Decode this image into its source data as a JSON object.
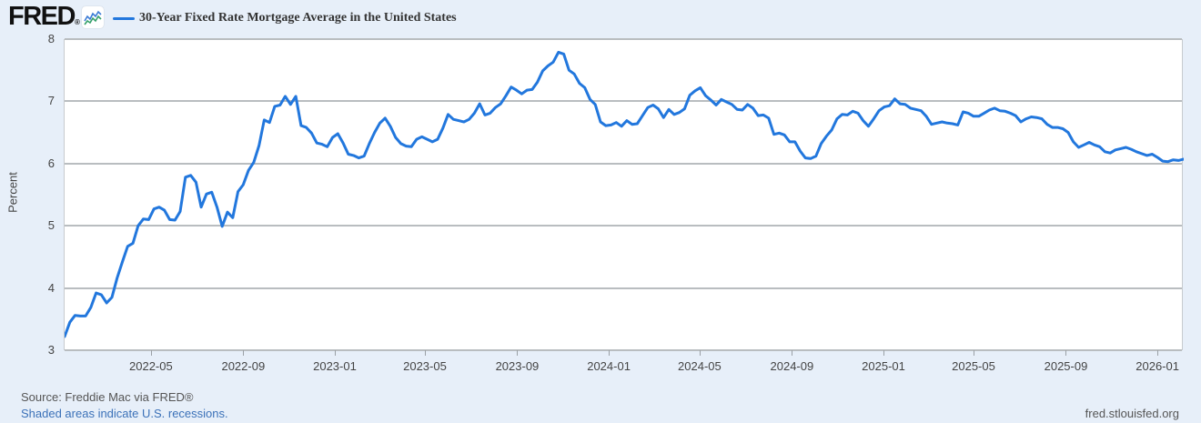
{
  "header": {
    "logo_text": "FRED",
    "registered_mark": "®",
    "legend_label": "30-Year Fixed Rate Mortgage Average in the United States"
  },
  "footer": {
    "source": "Source: Freddie Mac via FRED®",
    "recessions_note": "Shaded areas indicate U.S. recessions.",
    "site_link": "fred.stlouisfed.org"
  },
  "colors": {
    "series_line": "#2277dd",
    "page_background": "#e7eff9",
    "plot_background": "#ffffff",
    "gridline": "#b9bdc0",
    "link_blue": "#3b71b8",
    "sparkline_blue": "#3a7bd5",
    "sparkline_green": "#35a06a"
  },
  "chart_data": {
    "type": "line",
    "title": "30-Year Fixed Rate Mortgage Average in the United States",
    "ylabel": "Percent",
    "ylim": [
      3,
      8
    ],
    "yticks": [
      "8",
      "7",
      "6",
      "5",
      "4",
      "3"
    ],
    "xticks": [
      "2022-05",
      "2022-09",
      "2023-01",
      "2023-05",
      "2023-09",
      "2024-01",
      "2024-05",
      "2024-09",
      "2025-01",
      "2025-05",
      "2025-09",
      "2026-01"
    ],
    "grid": true,
    "legend_position": "top",
    "frequency": "weekly",
    "start_date": "2022-01-06",
    "end_date": "2026-02-05",
    "series": [
      {
        "name": "30-Year Fixed Rate Mortgage Average in the United States",
        "units": "Percent",
        "values": [
          3.22,
          3.45,
          3.56,
          3.55,
          3.55,
          3.69,
          3.92,
          3.89,
          3.76,
          3.85,
          4.16,
          4.42,
          4.67,
          4.72,
          5.0,
          5.11,
          5.1,
          5.27,
          5.3,
          5.25,
          5.1,
          5.09,
          5.23,
          5.78,
          5.81,
          5.7,
          5.3,
          5.51,
          5.54,
          5.3,
          4.99,
          5.22,
          5.13,
          5.55,
          5.66,
          5.89,
          6.02,
          6.29,
          6.7,
          6.66,
          6.92,
          6.94,
          7.08,
          6.95,
          7.08,
          6.61,
          6.58,
          6.49,
          6.33,
          6.31,
          6.27,
          6.42,
          6.48,
          6.33,
          6.15,
          6.13,
          6.09,
          6.12,
          6.32,
          6.5,
          6.65,
          6.73,
          6.6,
          6.42,
          6.32,
          6.28,
          6.27,
          6.39,
          6.43,
          6.39,
          6.35,
          6.39,
          6.57,
          6.79,
          6.71,
          6.69,
          6.67,
          6.71,
          6.81,
          6.96,
          6.78,
          6.81,
          6.9,
          6.96,
          7.09,
          7.23,
          7.18,
          7.12,
          7.18,
          7.19,
          7.31,
          7.49,
          7.57,
          7.63,
          7.79,
          7.76,
          7.5,
          7.44,
          7.29,
          7.22,
          7.03,
          6.95,
          6.67,
          6.61,
          6.62,
          6.66,
          6.6,
          6.69,
          6.63,
          6.64,
          6.77,
          6.9,
          6.94,
          6.88,
          6.74,
          6.87,
          6.79,
          6.82,
          6.88,
          7.1,
          7.17,
          7.22,
          7.09,
          7.02,
          6.94,
          7.03,
          6.99,
          6.95,
          6.87,
          6.86,
          6.95,
          6.89,
          6.77,
          6.78,
          6.73,
          6.47,
          6.49,
          6.46,
          6.35,
          6.35,
          6.2,
          6.09,
          6.08,
          6.12,
          6.32,
          6.44,
          6.54,
          6.72,
          6.79,
          6.78,
          6.84,
          6.81,
          6.69,
          6.6,
          6.72,
          6.85,
          6.91,
          6.93,
          7.04,
          6.96,
          6.95,
          6.89,
          6.87,
          6.85,
          6.76,
          6.63,
          6.65,
          6.67,
          6.65,
          6.64,
          6.62,
          6.83,
          6.81,
          6.76,
          6.76,
          6.81,
          6.86,
          6.89,
          6.85,
          6.84,
          6.81,
          6.77,
          6.67,
          6.72,
          6.75,
          6.74,
          6.72,
          6.63,
          6.58,
          6.58,
          6.56,
          6.5,
          6.35,
          6.26,
          6.3,
          6.34,
          6.3,
          6.27,
          6.19,
          6.17,
          6.22,
          6.24,
          6.26,
          6.23,
          6.19,
          6.16,
          6.13,
          6.15,
          6.1,
          6.04,
          6.03,
          6.06,
          6.05,
          6.07
        ]
      }
    ]
  }
}
